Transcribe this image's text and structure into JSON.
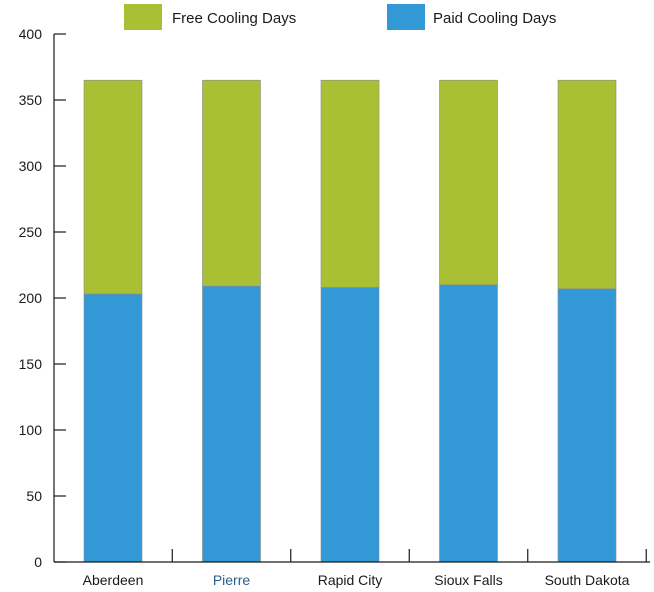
{
  "chart_data": {
    "type": "bar",
    "stacked": true,
    "title": "",
    "xlabel": "",
    "ylabel": "",
    "categories": [
      "Aberdeen",
      "Pierre",
      "Rapid City",
      "Sioux Falls",
      "South Dakota"
    ],
    "series": [
      {
        "name": "Paid Cooling Days",
        "color": "#3399d6",
        "values": [
          203,
          209,
          208,
          210,
          207
        ]
      },
      {
        "name": "Free Cooling Days",
        "color": "#a9bf34",
        "values": [
          162,
          156,
          157,
          155,
          158
        ]
      }
    ],
    "legend_order": [
      "Free Cooling Days",
      "Paid Cooling Days"
    ],
    "legend_position": "top",
    "ylim": [
      0,
      400
    ],
    "yticks": [
      0,
      50,
      100,
      150,
      200,
      250,
      300,
      350,
      400
    ],
    "grid": false,
    "category_label_colors": {
      "Pierre": "#2b5f8e"
    }
  }
}
